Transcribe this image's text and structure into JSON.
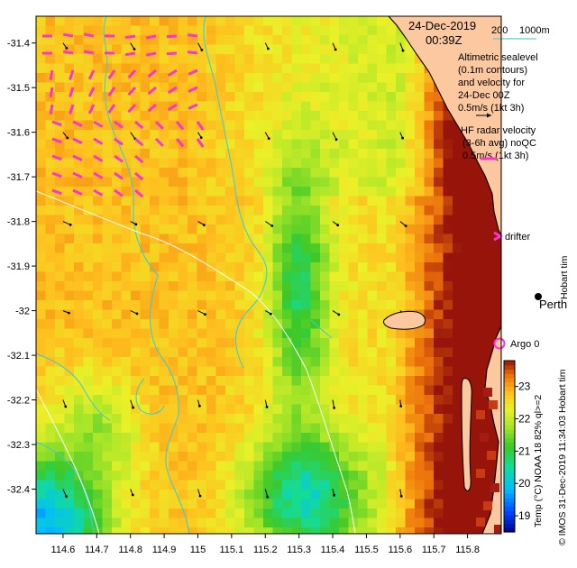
{
  "header": {
    "date": "24-Dec-2019",
    "time": "00:39Z"
  },
  "scale_bar": {
    "left_label": "200",
    "right_label": "1000m",
    "color": "#66cccc"
  },
  "legend": {
    "altimetry_lines": [
      "Altimetric sealevel",
      "(0.1m contours)",
      "and velocity for",
      "24-Dec 00Z",
      "0.5m/s (1kt 3h)"
    ],
    "hf_radar_lines": [
      "HF radar velocity",
      "(3-6h avg) noQC",
      "0.5m/s (1kt 3h)"
    ],
    "drifter_label": "drifter",
    "argo_label": "Argo 0",
    "city_label": "Perth",
    "edge_label": "Hobart tim"
  },
  "colorbar": {
    "title": "Temp (°C) NOAA 18 82% ql>=2",
    "ticks": [
      "19",
      "20",
      "21",
      "22",
      "23"
    ],
    "range": [
      18.5,
      23.8
    ]
  },
  "credit": "© IMOS 31-Dec-2019 11:34:03 Hobart tim",
  "axes": {
    "x_ticks": [
      "114.6",
      "114.7",
      "114.8",
      "114.9",
      "115",
      "115.1",
      "115.2",
      "115.3",
      "115.4",
      "115.5",
      "115.6",
      "115.7",
      "115.8"
    ],
    "y_ticks": [
      "-31.4",
      "-31.5",
      "-31.6",
      "-31.7",
      "-31.8",
      "-31.9",
      "-32",
      "-32.1",
      "-32.2",
      "-32.3",
      "-32.4"
    ],
    "lon_range": [
      114.52,
      115.9
    ],
    "lat_range": [
      -32.5,
      -31.34
    ]
  },
  "colors": {
    "land": "#fbc8a0",
    "radar_arrow": "#ff33cc",
    "argo": "#ff33cc",
    "contour": "#44cccc"
  },
  "chart_data": {
    "type": "heatmap",
    "variable": "Sea surface temperature (°C)",
    "lon_range": [
      114.52,
      115.9
    ],
    "lat_range": [
      -32.5,
      -31.34
    ],
    "value_range": [
      18.5,
      23.8
    ],
    "x_ticks": [
      114.6,
      114.7,
      114.8,
      114.9,
      115,
      115.1,
      115.2,
      115.3,
      115.4,
      115.5,
      115.6,
      115.7,
      115.8
    ],
    "y_ticks": [
      -31.4,
      -31.5,
      -31.6,
      -31.7,
      -31.8,
      -31.9,
      -32,
      -32.1,
      -32.2,
      -32.3,
      -32.4
    ],
    "features": {
      "warm_offshore_northwest": 22.8,
      "cool_tongue_center": 21.0,
      "cool_southern_shelf": 20.6,
      "coldest_southwest_corner": 19.8,
      "warm_coastal_band": 23.4
    },
    "city": {
      "name": "Perth",
      "lon": 115.86,
      "lat": -31.95
    },
    "argo": {
      "name": "Argo 0",
      "lon": 115.73,
      "lat": -32.07
    }
  }
}
